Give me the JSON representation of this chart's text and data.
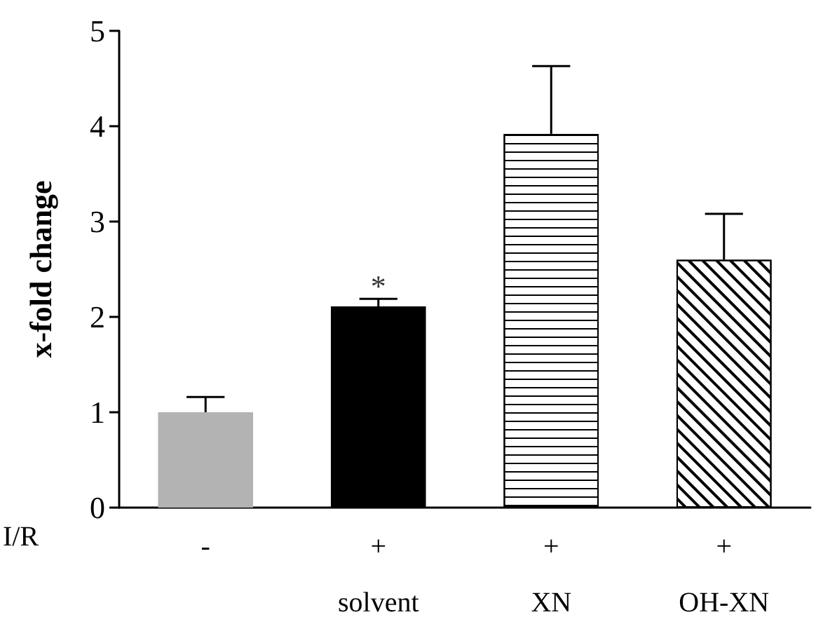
{
  "chart_data": {
    "type": "bar",
    "ylabel": "x-fold change",
    "xlabel": "I/R",
    "categories": [
      "-",
      "+\nsolvent",
      "+\nXN",
      "+\nOH-XN"
    ],
    "values": [
      1.0,
      2.11,
      3.92,
      2.6
    ],
    "colors": [
      "#b3b3b3",
      "#000000",
      "#ffffff",
      "#ffffff"
    ],
    "errors": [
      [
        1.0,
        1.16
      ],
      [
        2.11,
        2.19
      ],
      [
        3.92,
        4.63
      ],
      [
        2.6,
        3.08
      ]
    ],
    "annotations": [
      {
        "text": "*",
        "x": "+\nsolvent",
        "y": 2.19
      }
    ],
    "ylim": [
      0,
      5
    ],
    "yticks": [
      0,
      1,
      2,
      3,
      4,
      5
    ],
    "grid": false
  }
}
